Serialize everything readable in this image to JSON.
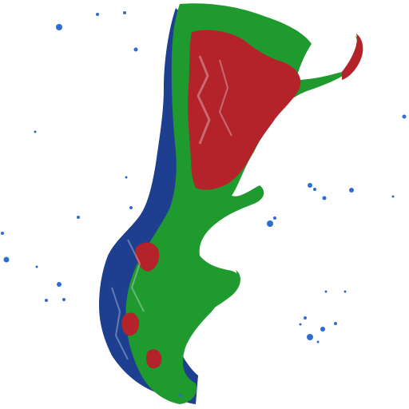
{
  "colors": {
    "background": "#ffffff",
    "green": "#1f9a2e",
    "green_dark": "#0f7a1f",
    "red": "#b5232a",
    "red_dark": "#8d1820",
    "blue": "#1e3f8f",
    "blue_dark": "#15306f",
    "speck_blue": "#2d6cd0",
    "outline_white": "#e9edf6"
  },
  "map": {
    "subject": "stylized-country-map",
    "fills": [
      "green",
      "red",
      "blue"
    ],
    "scattered_specks": true
  }
}
